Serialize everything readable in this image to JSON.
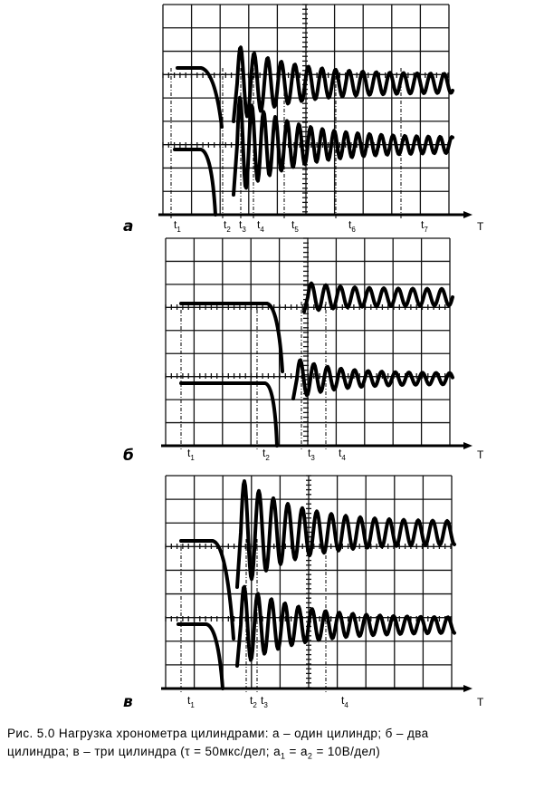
{
  "axis_label": "T",
  "panels": [
    {
      "id": "a",
      "letter": "а",
      "markers": [
        {
          "t": "t",
          "n": "1"
        },
        {
          "t": "t",
          "n": "2"
        },
        {
          "t": "t",
          "n": "3"
        },
        {
          "t": "t",
          "n": "4"
        },
        {
          "t": "t",
          "n": "5"
        },
        {
          "t": "t",
          "n": "6"
        },
        {
          "t": "t",
          "n": "7"
        }
      ]
    },
    {
      "id": "b",
      "letter": "б",
      "markers": [
        {
          "t": "t",
          "n": "1"
        },
        {
          "t": "t",
          "n": "2"
        },
        {
          "t": "t",
          "n": "3"
        },
        {
          "t": "t",
          "n": "4"
        }
      ]
    },
    {
      "id": "c",
      "letter": "в",
      "markers": [
        {
          "t": "t",
          "n": "1"
        },
        {
          "t": "t",
          "n": "2"
        },
        {
          "t": "t",
          "n": "3"
        },
        {
          "t": "t",
          "n": "4"
        }
      ]
    }
  ],
  "caption": {
    "line1": "Рис. 5.0  Нагрузка хронометра цилиндрами: а – один цилиндр; б – два",
    "line2_a": "цилиндра; в – три цилиндра (τ =  50мкс/дел; a",
    "sub1": "1",
    "line2_b": " =  a",
    "sub2": "2",
    "line2_c": " =  10В/дел)"
  }
}
